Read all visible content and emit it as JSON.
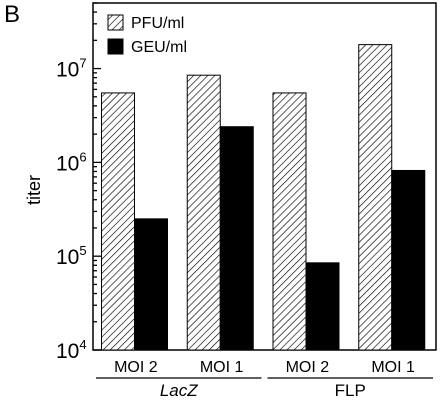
{
  "panel_label": "B",
  "colors": {
    "pfu_fill": "#ffffff",
    "pfu_hatch": "#000000",
    "geu_fill": "#000000",
    "axis": "#000000"
  },
  "chart_data": {
    "type": "bar",
    "title": "",
    "xlabel": "",
    "ylabel": "titer",
    "yscale": "log",
    "ylim": [
      10000,
      50000000
    ],
    "yticks": [
      {
        "base": "10",
        "exp": "4",
        "value": 10000
      },
      {
        "base": "10",
        "exp": "5",
        "value": 100000
      },
      {
        "base": "10",
        "exp": "6",
        "value": 1000000
      },
      {
        "base": "10",
        "exp": "7",
        "value": 10000000
      }
    ],
    "categories": [
      "MOI 2",
      "MOI 1",
      "MOI 2",
      "MOI 1"
    ],
    "groups": [
      {
        "label": "LacZ",
        "italic": true,
        "categories": [
          0,
          1
        ]
      },
      {
        "label": "FLP",
        "italic": false,
        "categories": [
          2,
          3
        ]
      }
    ],
    "series": [
      {
        "name": "PFU/ml",
        "pattern": "hatched",
        "values": [
          5500000,
          8500000,
          5500000,
          18000000
        ]
      },
      {
        "name": "GEU/ml",
        "pattern": "solid",
        "values": [
          250000,
          2400000,
          85000,
          820000
        ]
      }
    ],
    "legend": {
      "position": "top-left",
      "entries": [
        "PFU/ml",
        "GEU/ml"
      ]
    },
    "grid": false
  }
}
